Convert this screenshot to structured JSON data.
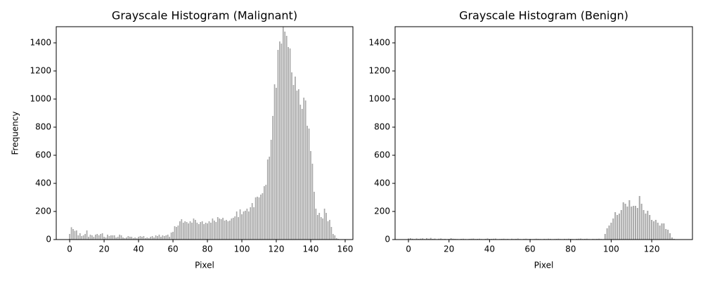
{
  "chart_data": [
    {
      "type": "bar",
      "title": "Grayscale Histogram (Malignant)",
      "x_label": "Pixel",
      "y_label": "Frequency",
      "color": "#a9a9a9",
      "x": [
        0,
        1,
        2,
        3,
        4,
        5,
        6,
        7,
        8,
        9,
        10,
        11,
        12,
        13,
        14,
        15,
        16,
        17,
        18,
        19,
        20,
        21,
        22,
        23,
        24,
        25,
        26,
        27,
        28,
        29,
        30,
        31,
        32,
        33,
        34,
        35,
        36,
        37,
        38,
        39,
        40,
        41,
        42,
        43,
        44,
        45,
        46,
        47,
        48,
        49,
        50,
        51,
        52,
        53,
        54,
        55,
        56,
        57,
        58,
        59,
        60,
        61,
        62,
        63,
        64,
        65,
        66,
        67,
        68,
        69,
        70,
        71,
        72,
        73,
        74,
        75,
        76,
        77,
        78,
        79,
        80,
        81,
        82,
        83,
        84,
        85,
        86,
        87,
        88,
        89,
        90,
        91,
        92,
        93,
        94,
        95,
        96,
        97,
        98,
        99,
        100,
        101,
        102,
        103,
        104,
        105,
        106,
        107,
        108,
        109,
        110,
        111,
        112,
        113,
        114,
        115,
        116,
        117,
        118,
        119,
        120,
        121,
        122,
        123,
        124,
        125,
        126,
        127,
        128,
        129,
        130,
        131,
        132,
        133,
        134,
        135,
        136,
        137,
        138,
        139,
        140,
        141,
        142,
        143,
        144,
        145,
        146,
        147,
        148,
        149,
        150,
        151,
        152,
        153,
        154,
        155,
        156
      ],
      "values": [
        40,
        88,
        75,
        62,
        65,
        30,
        45,
        25,
        30,
        40,
        65,
        20,
        35,
        30,
        20,
        35,
        40,
        30,
        40,
        45,
        20,
        15,
        35,
        25,
        30,
        30,
        30,
        15,
        20,
        35,
        30,
        15,
        10,
        15,
        25,
        20,
        20,
        10,
        15,
        10,
        20,
        25,
        20,
        25,
        10,
        15,
        10,
        20,
        25,
        15,
        30,
        25,
        35,
        20,
        30,
        25,
        30,
        35,
        20,
        50,
        55,
        95,
        90,
        100,
        130,
        145,
        120,
        130,
        125,
        115,
        130,
        120,
        150,
        140,
        120,
        110,
        125,
        130,
        110,
        120,
        115,
        130,
        120,
        150,
        135,
        125,
        160,
        150,
        145,
        155,
        135,
        140,
        130,
        135,
        150,
        155,
        165,
        200,
        160,
        215,
        180,
        200,
        205,
        220,
        200,
        230,
        260,
        230,
        300,
        305,
        300,
        320,
        330,
        380,
        390,
        570,
        590,
        710,
        880,
        1105,
        1080,
        1350,
        1410,
        1395,
        1515,
        1480,
        1450,
        1370,
        1360,
        1190,
        1100,
        1160,
        1060,
        1070,
        960,
        930,
        1010,
        990,
        810,
        790,
        630,
        540,
        340,
        220,
        175,
        190,
        160,
        150,
        220,
        190,
        130,
        140,
        90,
        40,
        30,
        10,
        5
      ],
      "xlim": [
        -7.8,
        164.5
      ],
      "xticks": [
        0,
        20,
        40,
        60,
        80,
        100,
        120,
        140,
        160
      ],
      "ylim": [
        0,
        1515
      ],
      "yticks": [
        0,
        200,
        400,
        600,
        800,
        1000,
        1200,
        1400
      ]
    },
    {
      "type": "bar",
      "title": "Grayscale Histogram (Benign)",
      "x_label": "Pixel",
      "color": "#a9a9a9",
      "x": [
        0,
        1,
        2,
        3,
        4,
        5,
        6,
        7,
        8,
        9,
        10,
        11,
        12,
        13,
        14,
        15,
        16,
        17,
        18,
        19,
        20,
        21,
        22,
        23,
        24,
        25,
        26,
        27,
        28,
        29,
        30,
        31,
        32,
        33,
        34,
        35,
        36,
        37,
        38,
        39,
        40,
        41,
        42,
        43,
        44,
        45,
        46,
        47,
        48,
        49,
        50,
        51,
        52,
        53,
        54,
        55,
        56,
        57,
        58,
        59,
        60,
        61,
        62,
        63,
        64,
        65,
        66,
        67,
        68,
        69,
        70,
        71,
        72,
        73,
        74,
        75,
        76,
        77,
        78,
        79,
        80,
        81,
        82,
        83,
        84,
        85,
        86,
        87,
        88,
        89,
        90,
        91,
        92,
        93,
        94,
        95,
        96,
        97,
        98,
        99,
        100,
        101,
        102,
        103,
        104,
        105,
        106,
        107,
        108,
        109,
        110,
        111,
        112,
        113,
        114,
        115,
        116,
        117,
        118,
        119,
        120,
        121,
        122,
        123,
        124,
        125,
        126,
        127,
        128,
        129,
        130,
        131
      ],
      "values": [
        8,
        10,
        6,
        4,
        8,
        5,
        7,
        9,
        4,
        10,
        6,
        12,
        5,
        7,
        3,
        6,
        8,
        4,
        5,
        3,
        4,
        10,
        6,
        5,
        4,
        3,
        5,
        6,
        4,
        3,
        5,
        6,
        7,
        4,
        5,
        6,
        4,
        3,
        5,
        8,
        4,
        5,
        6,
        7,
        3,
        4,
        5,
        6,
        4,
        5,
        3,
        6,
        4,
        5,
        7,
        4,
        3,
        5,
        6,
        4,
        5,
        3,
        4,
        6,
        5,
        4,
        3,
        5,
        4,
        6,
        5,
        3,
        4,
        5,
        6,
        4,
        3,
        5,
        4,
        6,
        5,
        4,
        3,
        5,
        6,
        7,
        4,
        5,
        6,
        4,
        3,
        5,
        4,
        5,
        6,
        4,
        3,
        40,
        80,
        100,
        120,
        150,
        195,
        175,
        185,
        210,
        265,
        255,
        235,
        280,
        235,
        240,
        240,
        225,
        310,
        255,
        210,
        185,
        205,
        175,
        140,
        130,
        140,
        120,
        100,
        115,
        115,
        75,
        70,
        45,
        15,
        5
      ],
      "xlim": [
        -6.6,
        140.1
      ],
      "xticks": [
        0,
        20,
        40,
        60,
        80,
        100,
        120
      ],
      "ylim": [
        0,
        1515
      ],
      "yticks": [
        0,
        200,
        400,
        600,
        800,
        1000,
        1200,
        1400
      ]
    }
  ]
}
